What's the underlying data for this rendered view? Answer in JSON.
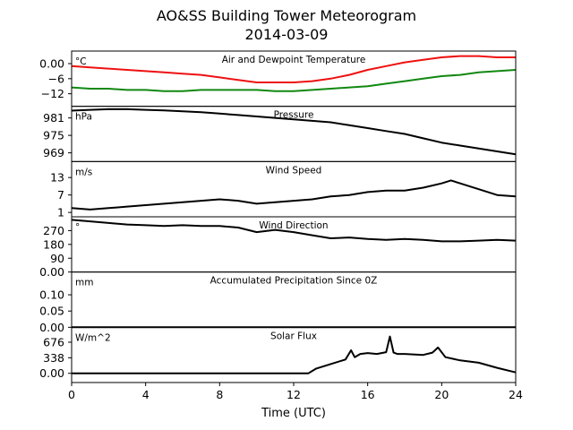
{
  "figure": {
    "title_line1": "AO&SS Building Tower Meteorogram",
    "title_line2": "2014-03-09",
    "xlabel": "Time (UTC)"
  },
  "colors": {
    "temperature": "#ee1111",
    "dewpoint": "#118811",
    "default": "#000000"
  },
  "chart_data": [
    {
      "type": "line",
      "title": "Air and Dewpoint Temperature",
      "unit_label": "°C",
      "xlim": [
        0,
        24
      ],
      "ylim": [
        -17,
        5
      ],
      "yticks": [
        0,
        -6,
        -12
      ],
      "series": [
        {
          "color": "#ee1111",
          "x": [
            0,
            1,
            2,
            3,
            4,
            5,
            6,
            7,
            8,
            9,
            10,
            11,
            12,
            13,
            14,
            15,
            16,
            17,
            18,
            19,
            20,
            21,
            22,
            23,
            24
          ],
          "y": [
            -1,
            -1.5,
            -2,
            -2.5,
            -3,
            -3.5,
            -4,
            -4.5,
            -5.5,
            -6.5,
            -7.5,
            -7.5,
            -7.5,
            -7,
            -6,
            -4.5,
            -2.5,
            -1,
            0.5,
            1.5,
            2.5,
            3,
            3,
            2.5,
            2.5
          ]
        },
        {
          "color": "#118811",
          "x": [
            0,
            1,
            2,
            3,
            4,
            5,
            6,
            7,
            8,
            9,
            10,
            11,
            12,
            13,
            14,
            15,
            16,
            17,
            18,
            19,
            20,
            21,
            22,
            23,
            24
          ],
          "y": [
            -9.5,
            -10,
            -10,
            -10.5,
            -10.5,
            -11,
            -11,
            -10.5,
            -10.5,
            -10.5,
            -10.5,
            -11,
            -11,
            -10.5,
            -10,
            -9.5,
            -9,
            -8,
            -7,
            -6,
            -5,
            -4.5,
            -3.5,
            -3,
            -2.5
          ]
        }
      ]
    },
    {
      "type": "line",
      "title": "Pressure",
      "unit_label": "hPa",
      "xlim": [
        0,
        24
      ],
      "ylim": [
        966,
        985
      ],
      "yticks": [
        981,
        975,
        969
      ],
      "series": [
        {
          "color": "#000000",
          "x": [
            0,
            1,
            2,
            3,
            4,
            5,
            6,
            7,
            8,
            9,
            10,
            11,
            12,
            13,
            14,
            15,
            16,
            17,
            18,
            19,
            20,
            21,
            22,
            23,
            24
          ],
          "y": [
            983.5,
            983.8,
            984,
            984,
            983.8,
            983.6,
            983.3,
            983,
            982.5,
            982,
            981.5,
            981,
            980.5,
            980,
            979.5,
            978.5,
            977.5,
            976.5,
            975.5,
            974,
            972.5,
            971.5,
            970.5,
            969.5,
            968.5
          ]
        }
      ]
    },
    {
      "type": "line",
      "title": "Wind Speed",
      "unit_label": "m/s",
      "xlim": [
        0,
        24
      ],
      "ylim": [
        -0.5,
        18.5
      ],
      "yticks": [
        13,
        7,
        1
      ],
      "series": [
        {
          "color": "#000000",
          "x": [
            0,
            1,
            2,
            3,
            4,
            5,
            6,
            7,
            8,
            9,
            10,
            11,
            12,
            13,
            14,
            15,
            16,
            17,
            18,
            19,
            20,
            20.5,
            21,
            22,
            23,
            24
          ],
          "y": [
            2.5,
            2,
            2.5,
            3,
            3.5,
            4,
            4.5,
            5,
            5.5,
            5,
            4,
            4.5,
            5,
            5.5,
            6.5,
            7,
            8,
            8.5,
            8.5,
            9.5,
            11,
            12,
            11,
            9,
            7,
            6.5
          ]
        }
      ]
    },
    {
      "type": "line",
      "title": "Wind Direction",
      "unit_label": "°",
      "xlim": [
        0,
        24
      ],
      "ylim": [
        0,
        360
      ],
      "yticks": [
        270,
        180,
        90,
        0
      ],
      "series": [
        {
          "color": "#000000",
          "x": [
            0,
            1,
            2,
            3,
            4,
            5,
            6,
            7,
            8,
            9,
            10,
            11,
            12,
            13,
            14,
            15,
            16,
            17,
            18,
            19,
            20,
            21,
            22,
            23,
            24
          ],
          "y": [
            340,
            330,
            320,
            310,
            305,
            300,
            305,
            300,
            300,
            290,
            260,
            275,
            260,
            240,
            220,
            225,
            215,
            210,
            215,
            210,
            200,
            200,
            205,
            210,
            205
          ]
        }
      ]
    },
    {
      "type": "line",
      "title": "Accumulated Precipitation Since 0Z",
      "unit_label": "mm",
      "xlim": [
        0,
        24
      ],
      "ylim": [
        0,
        0.17
      ],
      "yticks": [
        0.1,
        0.05,
        0.0
      ],
      "series": [
        {
          "color": "#000000",
          "x": [
            0,
            24
          ],
          "y": [
            0,
            0
          ]
        }
      ]
    },
    {
      "type": "line",
      "title": "Solar Flux",
      "unit_label": "W/m^2",
      "xlim": [
        0,
        24
      ],
      "ylim": [
        -200,
        1000
      ],
      "yticks": [
        676,
        338,
        0
      ],
      "series": [
        {
          "color": "#000000",
          "x": [
            0,
            5,
            10,
            12.8,
            13.2,
            14,
            14.8,
            15.1,
            15.3,
            15.6,
            16,
            16.5,
            17,
            17.2,
            17.4,
            17.6,
            18,
            19,
            19.5,
            19.8,
            20.2,
            21,
            22,
            23,
            24
          ],
          "y": [
            0,
            0,
            0,
            0,
            100,
            200,
            300,
            500,
            350,
            420,
            440,
            420,
            460,
            800,
            450,
            420,
            420,
            400,
            450,
            560,
            350,
            280,
            230,
            120,
            20
          ]
        }
      ]
    }
  ]
}
